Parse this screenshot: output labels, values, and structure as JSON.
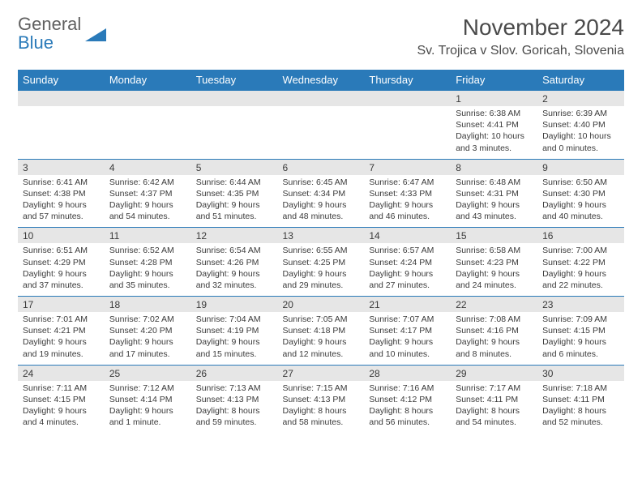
{
  "logo": {
    "top": "General",
    "bottom": "Blue"
  },
  "title": "November 2024",
  "location": "Sv. Trojica v Slov. Goricah, Slovenia",
  "colors": {
    "header_bg": "#2a7ab9",
    "header_text": "#ffffff",
    "numrow_bg": "#e6e6e6",
    "border": "#2a7ab9",
    "text": "#3a3a3a",
    "logo_gray": "#606060",
    "logo_blue": "#2a7ab9"
  },
  "day_names": [
    "Sunday",
    "Monday",
    "Tuesday",
    "Wednesday",
    "Thursday",
    "Friday",
    "Saturday"
  ],
  "weeks": [
    [
      null,
      null,
      null,
      null,
      null,
      {
        "n": "1",
        "sr": "Sunrise: 6:38 AM",
        "ss": "Sunset: 4:41 PM",
        "dl": "Daylight: 10 hours and 3 minutes."
      },
      {
        "n": "2",
        "sr": "Sunrise: 6:39 AM",
        "ss": "Sunset: 4:40 PM",
        "dl": "Daylight: 10 hours and 0 minutes."
      }
    ],
    [
      {
        "n": "3",
        "sr": "Sunrise: 6:41 AM",
        "ss": "Sunset: 4:38 PM",
        "dl": "Daylight: 9 hours and 57 minutes."
      },
      {
        "n": "4",
        "sr": "Sunrise: 6:42 AM",
        "ss": "Sunset: 4:37 PM",
        "dl": "Daylight: 9 hours and 54 minutes."
      },
      {
        "n": "5",
        "sr": "Sunrise: 6:44 AM",
        "ss": "Sunset: 4:35 PM",
        "dl": "Daylight: 9 hours and 51 minutes."
      },
      {
        "n": "6",
        "sr": "Sunrise: 6:45 AM",
        "ss": "Sunset: 4:34 PM",
        "dl": "Daylight: 9 hours and 48 minutes."
      },
      {
        "n": "7",
        "sr": "Sunrise: 6:47 AM",
        "ss": "Sunset: 4:33 PM",
        "dl": "Daylight: 9 hours and 46 minutes."
      },
      {
        "n": "8",
        "sr": "Sunrise: 6:48 AM",
        "ss": "Sunset: 4:31 PM",
        "dl": "Daylight: 9 hours and 43 minutes."
      },
      {
        "n": "9",
        "sr": "Sunrise: 6:50 AM",
        "ss": "Sunset: 4:30 PM",
        "dl": "Daylight: 9 hours and 40 minutes."
      }
    ],
    [
      {
        "n": "10",
        "sr": "Sunrise: 6:51 AM",
        "ss": "Sunset: 4:29 PM",
        "dl": "Daylight: 9 hours and 37 minutes."
      },
      {
        "n": "11",
        "sr": "Sunrise: 6:52 AM",
        "ss": "Sunset: 4:28 PM",
        "dl": "Daylight: 9 hours and 35 minutes."
      },
      {
        "n": "12",
        "sr": "Sunrise: 6:54 AM",
        "ss": "Sunset: 4:26 PM",
        "dl": "Daylight: 9 hours and 32 minutes."
      },
      {
        "n": "13",
        "sr": "Sunrise: 6:55 AM",
        "ss": "Sunset: 4:25 PM",
        "dl": "Daylight: 9 hours and 29 minutes."
      },
      {
        "n": "14",
        "sr": "Sunrise: 6:57 AM",
        "ss": "Sunset: 4:24 PM",
        "dl": "Daylight: 9 hours and 27 minutes."
      },
      {
        "n": "15",
        "sr": "Sunrise: 6:58 AM",
        "ss": "Sunset: 4:23 PM",
        "dl": "Daylight: 9 hours and 24 minutes."
      },
      {
        "n": "16",
        "sr": "Sunrise: 7:00 AM",
        "ss": "Sunset: 4:22 PM",
        "dl": "Daylight: 9 hours and 22 minutes."
      }
    ],
    [
      {
        "n": "17",
        "sr": "Sunrise: 7:01 AM",
        "ss": "Sunset: 4:21 PM",
        "dl": "Daylight: 9 hours and 19 minutes."
      },
      {
        "n": "18",
        "sr": "Sunrise: 7:02 AM",
        "ss": "Sunset: 4:20 PM",
        "dl": "Daylight: 9 hours and 17 minutes."
      },
      {
        "n": "19",
        "sr": "Sunrise: 7:04 AM",
        "ss": "Sunset: 4:19 PM",
        "dl": "Daylight: 9 hours and 15 minutes."
      },
      {
        "n": "20",
        "sr": "Sunrise: 7:05 AM",
        "ss": "Sunset: 4:18 PM",
        "dl": "Daylight: 9 hours and 12 minutes."
      },
      {
        "n": "21",
        "sr": "Sunrise: 7:07 AM",
        "ss": "Sunset: 4:17 PM",
        "dl": "Daylight: 9 hours and 10 minutes."
      },
      {
        "n": "22",
        "sr": "Sunrise: 7:08 AM",
        "ss": "Sunset: 4:16 PM",
        "dl": "Daylight: 9 hours and 8 minutes."
      },
      {
        "n": "23",
        "sr": "Sunrise: 7:09 AM",
        "ss": "Sunset: 4:15 PM",
        "dl": "Daylight: 9 hours and 6 minutes."
      }
    ],
    [
      {
        "n": "24",
        "sr": "Sunrise: 7:11 AM",
        "ss": "Sunset: 4:15 PM",
        "dl": "Daylight: 9 hours and 4 minutes."
      },
      {
        "n": "25",
        "sr": "Sunrise: 7:12 AM",
        "ss": "Sunset: 4:14 PM",
        "dl": "Daylight: 9 hours and 1 minute."
      },
      {
        "n": "26",
        "sr": "Sunrise: 7:13 AM",
        "ss": "Sunset: 4:13 PM",
        "dl": "Daylight: 8 hours and 59 minutes."
      },
      {
        "n": "27",
        "sr": "Sunrise: 7:15 AM",
        "ss": "Sunset: 4:13 PM",
        "dl": "Daylight: 8 hours and 58 minutes."
      },
      {
        "n": "28",
        "sr": "Sunrise: 7:16 AM",
        "ss": "Sunset: 4:12 PM",
        "dl": "Daylight: 8 hours and 56 minutes."
      },
      {
        "n": "29",
        "sr": "Sunrise: 7:17 AM",
        "ss": "Sunset: 4:11 PM",
        "dl": "Daylight: 8 hours and 54 minutes."
      },
      {
        "n": "30",
        "sr": "Sunrise: 7:18 AM",
        "ss": "Sunset: 4:11 PM",
        "dl": "Daylight: 8 hours and 52 minutes."
      }
    ]
  ]
}
